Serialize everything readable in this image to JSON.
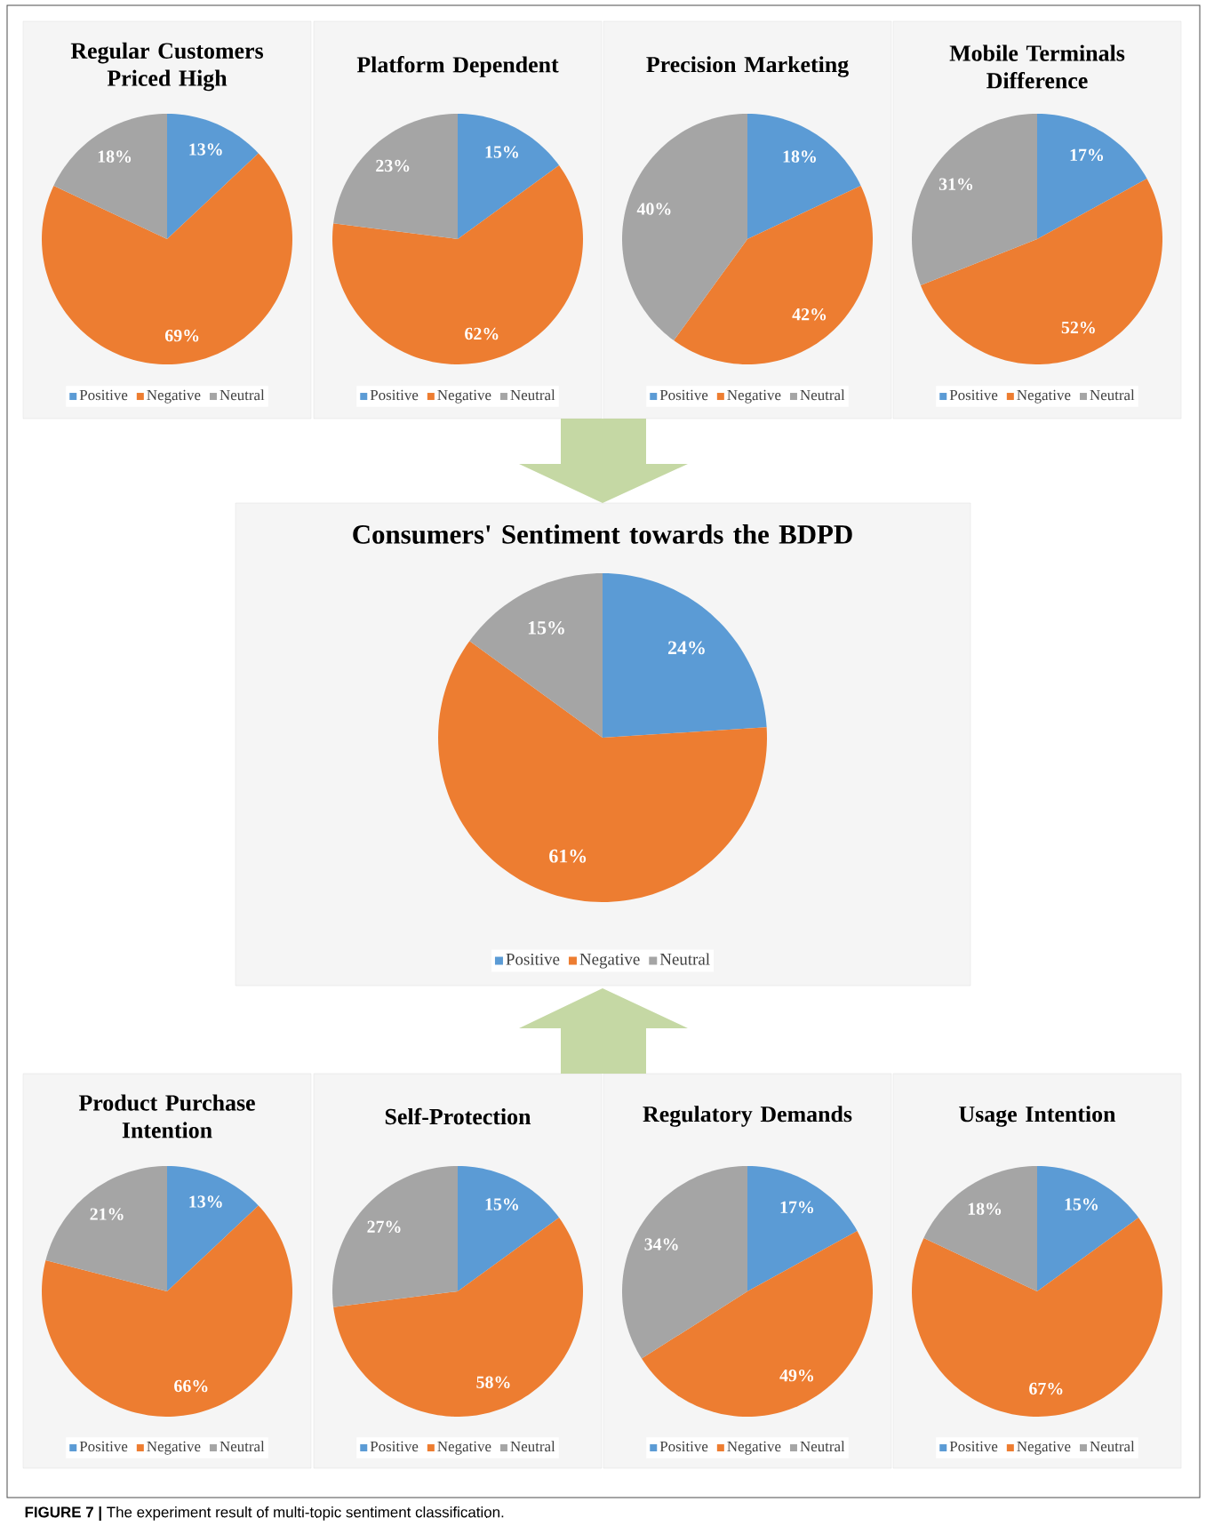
{
  "chart_data": [
    {
      "type": "pie",
      "title": "Regular Customers Priced High",
      "categories": [
        "Positive",
        "Negative",
        "Neutral"
      ],
      "values": [
        13,
        69,
        18
      ],
      "value_labels": [
        "13%",
        "69%",
        "18%"
      ],
      "colors": [
        "#5b9bd5",
        "#ed7d31",
        "#a5a5a5"
      ],
      "legend": "bottom"
    },
    {
      "type": "pie",
      "title": "Platform Dependent",
      "categories": [
        "Positive",
        "Negative",
        "Neutral"
      ],
      "values": [
        15,
        62,
        23
      ],
      "value_labels": [
        "15%",
        "62%",
        "23%"
      ],
      "colors": [
        "#5b9bd5",
        "#ed7d31",
        "#a5a5a5"
      ],
      "legend": "bottom"
    },
    {
      "type": "pie",
      "title": "Precision Marketing",
      "categories": [
        "Positive",
        "Negative",
        "Neutral"
      ],
      "values": [
        18,
        42,
        40
      ],
      "value_labels": [
        "18%",
        "42%",
        "40%"
      ],
      "colors": [
        "#5b9bd5",
        "#ed7d31",
        "#a5a5a5"
      ],
      "legend": "bottom"
    },
    {
      "type": "pie",
      "title": "Mobile Terminals Difference",
      "categories": [
        "Positive",
        "Negative",
        "Neutral"
      ],
      "values": [
        17,
        52,
        31
      ],
      "value_labels": [
        "17%",
        "52%",
        "31%"
      ],
      "colors": [
        "#5b9bd5",
        "#ed7d31",
        "#a5a5a5"
      ],
      "legend": "bottom"
    },
    {
      "type": "pie",
      "title": "Consumers' Sentiment towards the BDPD",
      "categories": [
        "Positive",
        "Negative",
        "Neutral"
      ],
      "values": [
        24,
        61,
        15
      ],
      "value_labels": [
        "24%",
        "61%",
        "15%"
      ],
      "colors": [
        "#5b9bd5",
        "#ed7d31",
        "#a5a5a5"
      ],
      "legend": "bottom"
    },
    {
      "type": "pie",
      "title": "Product Purchase Intention",
      "categories": [
        "Positive",
        "Negative",
        "Neutral"
      ],
      "values": [
        13,
        66,
        21
      ],
      "value_labels": [
        "13%",
        "66%",
        "21%"
      ],
      "colors": [
        "#5b9bd5",
        "#ed7d31",
        "#a5a5a5"
      ],
      "legend": "bottom"
    },
    {
      "type": "pie",
      "title": "Self-Protection",
      "categories": [
        "Positive",
        "Negative",
        "Neutral"
      ],
      "values": [
        15,
        58,
        27
      ],
      "value_labels": [
        "15%",
        "58%",
        "27%"
      ],
      "colors": [
        "#5b9bd5",
        "#ed7d31",
        "#a5a5a5"
      ],
      "legend": "bottom"
    },
    {
      "type": "pie",
      "title": "Regulatory Demands",
      "categories": [
        "Positive",
        "Negative",
        "Neutral"
      ],
      "values": [
        17,
        49,
        34
      ],
      "value_labels": [
        "17%",
        "49%",
        "34%"
      ],
      "colors": [
        "#5b9bd5",
        "#ed7d31",
        "#a5a5a5"
      ],
      "legend": "bottom"
    },
    {
      "type": "pie",
      "title": "Usage Intention",
      "categories": [
        "Positive",
        "Negative",
        "Neutral"
      ],
      "values": [
        15,
        67,
        18
      ],
      "value_labels": [
        "15%",
        "67%",
        "18%"
      ],
      "colors": [
        "#5b9bd5",
        "#ed7d31",
        "#a5a5a5"
      ],
      "legend": "bottom",
      "annotations": [
        "**FIGURE 7 |** The experiment result of multi-topic sentiment classification."
      ]
    }
  ]
}
